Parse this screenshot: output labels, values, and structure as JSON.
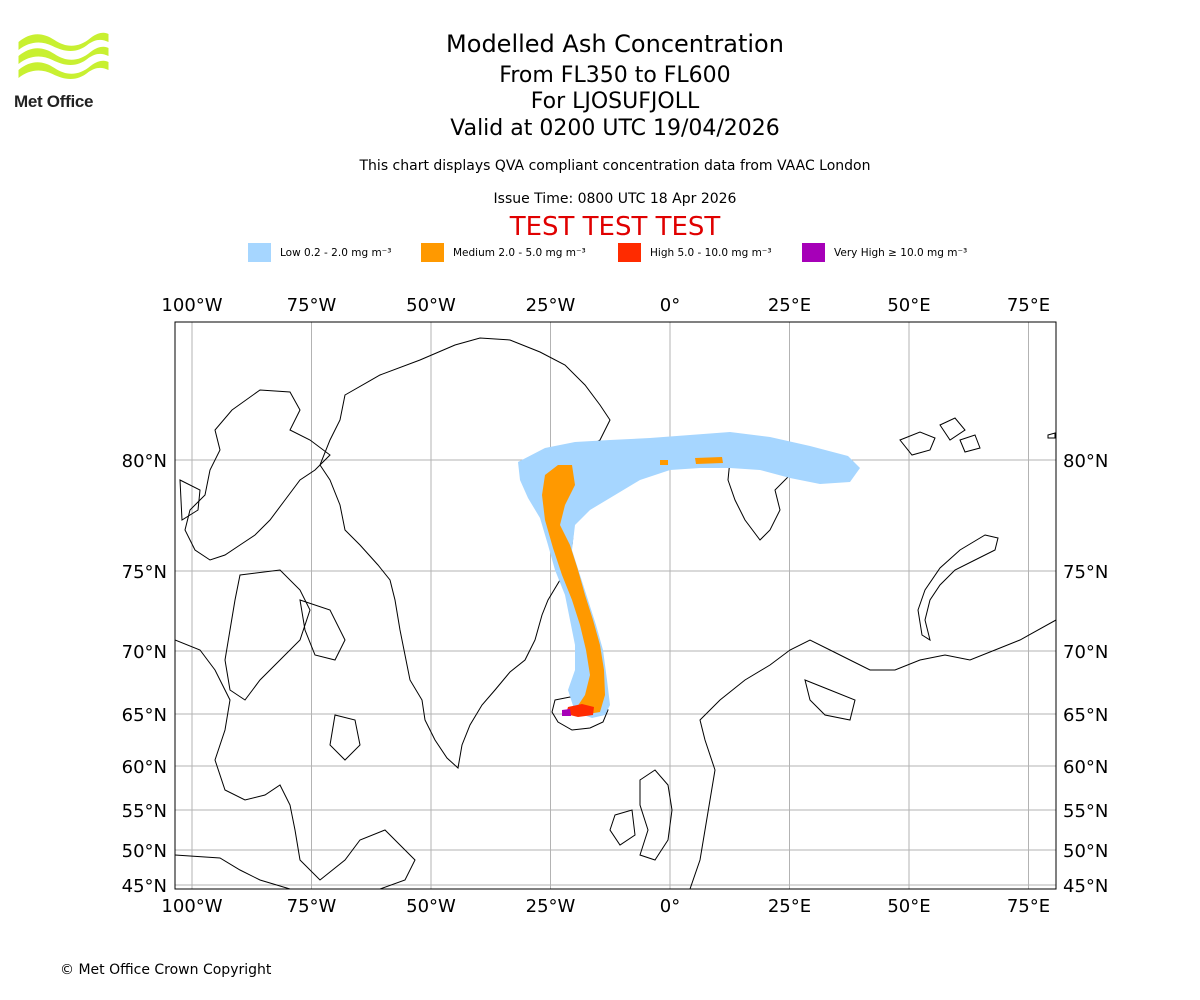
{
  "branding": {
    "logo_text": "Met Office",
    "logo_color": "#c8f031",
    "copyright": "© Met Office Crown Copyright"
  },
  "header": {
    "title": "Modelled Ash Concentration",
    "levels": "From FL350 to FL600",
    "volcano": "For LJOSUFJOLL",
    "valid": "Valid at 0200 UTC 19/04/2026",
    "note": "This chart displays QVA compliant concentration data from VAAC London",
    "issue": "Issue Time: 0800 UTC 18 Apr 2026",
    "test_banner": "TEST TEST TEST"
  },
  "legend": [
    {
      "label": "Low 0.2 - 2.0 mg m⁻³",
      "color": "#a6d6ff"
    },
    {
      "label": "Medium 2.0 - 5.0 mg m⁻³",
      "color": "#ff9900"
    },
    {
      "label": "High 5.0 - 10.0 mg m⁻³",
      "color": "#ff2b00"
    },
    {
      "label": "Very High ≥ 10.0 mg m⁻³",
      "color": "#a600b8"
    }
  ],
  "map": {
    "lon_ticks": [
      "100°W",
      "75°W",
      "50°W",
      "25°W",
      "0°",
      "25°E",
      "50°E",
      "75°E"
    ],
    "lat_ticks": [
      "80°N",
      "75°N",
      "70°N",
      "65°N",
      "60°N",
      "55°N",
      "50°N",
      "45°N"
    ],
    "lon_values": [
      -100,
      -75,
      -50,
      -25,
      0,
      25,
      50,
      75
    ],
    "lat_values": [
      80,
      75,
      70,
      65,
      60,
      55,
      50,
      45
    ],
    "grid_color": "#b3b3b3"
  }
}
